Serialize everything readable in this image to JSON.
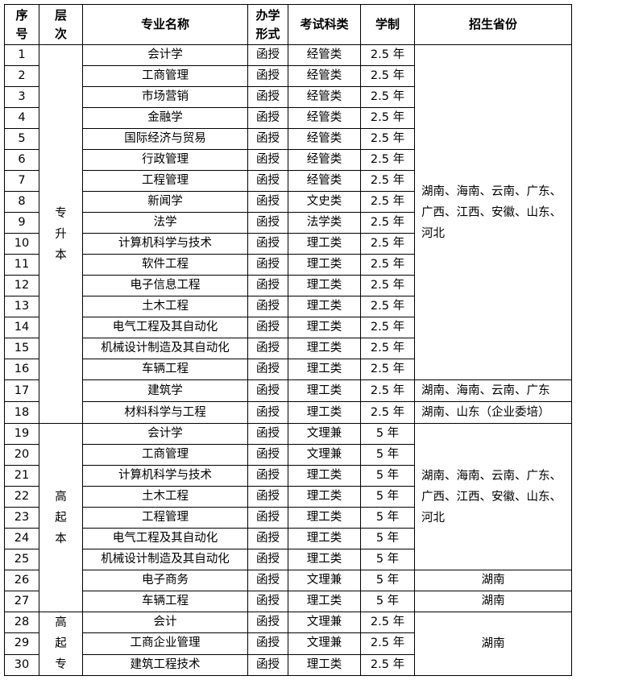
{
  "headers": {
    "index": [
      "序",
      "号"
    ],
    "level": [
      "层",
      "次"
    ],
    "major": "专业名称",
    "mode": [
      "办学",
      "形式"
    ],
    "exam": "考试科类",
    "duration": "学制",
    "provinces": "招生省份"
  },
  "rows": [
    {
      "no": "1",
      "major": "会计学",
      "mode": "函授",
      "exam": "经管类",
      "duration": "2.5 年"
    },
    {
      "no": "2",
      "major": "工商管理",
      "mode": "函授",
      "exam": "经管类",
      "duration": "2.5 年"
    },
    {
      "no": "3",
      "major": "市场营销",
      "mode": "函授",
      "exam": "经管类",
      "duration": "2.5 年"
    },
    {
      "no": "4",
      "major": "金融学",
      "mode": "函授",
      "exam": "经管类",
      "duration": "2.5 年"
    },
    {
      "no": "5",
      "major": "国际经济与贸易",
      "mode": "函授",
      "exam": "经管类",
      "duration": "2.5 年"
    },
    {
      "no": "6",
      "major": "行政管理",
      "mode": "函授",
      "exam": "经管类",
      "duration": "2.5 年"
    },
    {
      "no": "7",
      "major": "工程管理",
      "mode": "函授",
      "exam": "经管类",
      "duration": "2.5 年"
    },
    {
      "no": "8",
      "major": "新闻学",
      "mode": "函授",
      "exam": "文史类",
      "duration": "2.5 年"
    },
    {
      "no": "9",
      "major": "法学",
      "mode": "函授",
      "exam": "法学类",
      "duration": "2.5 年"
    },
    {
      "no": "10",
      "major": "计算机科学与技术",
      "mode": "函授",
      "exam": "理工类",
      "duration": "2.5 年"
    },
    {
      "no": "11",
      "major": "软件工程",
      "mode": "函授",
      "exam": "理工类",
      "duration": "2.5 年"
    },
    {
      "no": "12",
      "major": "电子信息工程",
      "mode": "函授",
      "exam": "理工类",
      "duration": "2.5 年"
    },
    {
      "no": "13",
      "major": "土木工程",
      "mode": "函授",
      "exam": "理工类",
      "duration": "2.5 年"
    },
    {
      "no": "14",
      "major": "电气工程及其自动化",
      "mode": "函授",
      "exam": "理工类",
      "duration": "2.5 年"
    },
    {
      "no": "15",
      "major": "机械设计制造及其自动化",
      "mode": "函授",
      "exam": "理工类",
      "duration": "2.5 年"
    },
    {
      "no": "16",
      "major": "车辆工程",
      "mode": "函授",
      "exam": "理工类",
      "duration": "2.5 年"
    },
    {
      "no": "17",
      "major": "建筑学",
      "mode": "函授",
      "exam": "理工类",
      "duration": "2.5 年"
    },
    {
      "no": "18",
      "major": "材料科学与工程",
      "mode": "函授",
      "exam": "理工类",
      "duration": "2.5 年"
    },
    {
      "no": "19",
      "major": "会计学",
      "mode": "函授",
      "exam": "文理兼",
      "duration": "5 年"
    },
    {
      "no": "20",
      "major": "工商管理",
      "mode": "函授",
      "exam": "文理兼",
      "duration": "5 年"
    },
    {
      "no": "21",
      "major": "计算机科学与技术",
      "mode": "函授",
      "exam": "理工类",
      "duration": "5 年"
    },
    {
      "no": "22",
      "major": "土木工程",
      "mode": "函授",
      "exam": "理工类",
      "duration": "5 年"
    },
    {
      "no": "23",
      "major": "工程管理",
      "mode": "函授",
      "exam": "理工类",
      "duration": "5 年"
    },
    {
      "no": "24",
      "major": "电气工程及其自动化",
      "mode": "函授",
      "exam": "理工类",
      "duration": "5 年"
    },
    {
      "no": "25",
      "major": "机械设计制造及其自动化",
      "mode": "函授",
      "exam": "理工类",
      "duration": "5 年"
    },
    {
      "no": "26",
      "major": "电子商务",
      "mode": "函授",
      "exam": "文理兼",
      "duration": "5 年"
    },
    {
      "no": "27",
      "major": "车辆工程",
      "mode": "函授",
      "exam": "理工类",
      "duration": "5 年"
    },
    {
      "no": "28",
      "major": "会计",
      "mode": "函授",
      "exam": "文理兼",
      "duration": "2.5 年"
    },
    {
      "no": "29",
      "major": "工商企业管理",
      "mode": "函授",
      "exam": "文理兼",
      "duration": "2.5 年"
    },
    {
      "no": "30",
      "major": "建筑工程技术",
      "mode": "函授",
      "exam": "理工类",
      "duration": "2.5 年"
    }
  ],
  "levels": [
    {
      "start": 0,
      "span": 18,
      "chars": [
        "专",
        "升",
        "本"
      ]
    },
    {
      "start": 18,
      "span": 9,
      "chars": [
        "高",
        "起",
        "本"
      ]
    },
    {
      "start": 27,
      "span": 3,
      "chars": [
        "高",
        "起",
        "专"
      ]
    }
  ],
  "provinces": [
    {
      "start": 0,
      "span": 16,
      "align": "left",
      "text": "湖南、海南、云南、广东、广西、江西、安徽、山东、河北"
    },
    {
      "start": 16,
      "span": 1,
      "align": "left",
      "text": "湖南、海南、云南、广东"
    },
    {
      "start": 17,
      "span": 1,
      "align": "left",
      "text": "湖南、山东（企业委培）"
    },
    {
      "start": 18,
      "span": 7,
      "align": "left",
      "text": "湖南、海南、云南、广东、广西、江西、安徽、山东、河北"
    },
    {
      "start": 25,
      "span": 1,
      "align": "center",
      "text": "湖南"
    },
    {
      "start": 26,
      "span": 1,
      "align": "center",
      "text": "湖南"
    },
    {
      "start": 27,
      "span": 3,
      "align": "center",
      "text": "湖南"
    }
  ]
}
